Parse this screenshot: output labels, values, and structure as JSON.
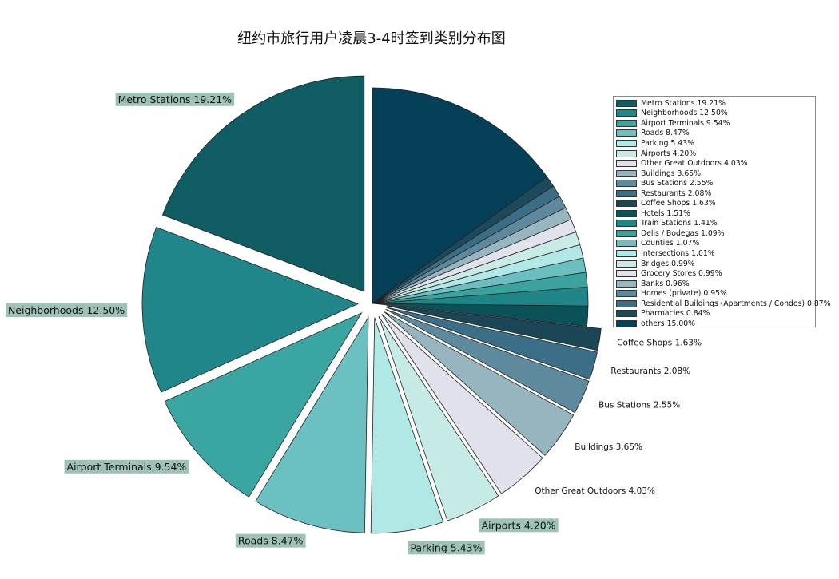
{
  "chart_data": {
    "type": "pie",
    "title": "纽约市旅行用户凌晨3-4时签到类别分布图",
    "slices": [
      {
        "label": "Metro Stations",
        "value": 19.21,
        "pct_label": "19.21%",
        "color": "#0f5c62",
        "explode": true,
        "label_bg": true
      },
      {
        "label": "Neighborhoods",
        "value": 12.5,
        "pct_label": "12.50%",
        "color": "#21868a",
        "explode": true,
        "label_bg": true
      },
      {
        "label": "Airport Terminals",
        "value": 9.54,
        "pct_label": "9.54%",
        "color": "#3ba6a1",
        "explode": true,
        "label_bg": true
      },
      {
        "label": "Roads",
        "value": 8.47,
        "pct_label": "8.47%",
        "color": "#6cc0c1",
        "explode": true,
        "label_bg": true
      },
      {
        "label": "Parking",
        "value": 5.43,
        "pct_label": "5.43%",
        "color": "#b0e8e6",
        "explode": true,
        "label_bg": true
      },
      {
        "label": "Airports",
        "value": 4.2,
        "pct_label": "4.20%",
        "color": "#c6ebe7",
        "explode": true,
        "label_bg": true
      },
      {
        "label": "Other Great Outdoors",
        "value": 4.03,
        "pct_label": "4.03%",
        "color": "#e1e1ec",
        "explode": true,
        "label_bg": false
      },
      {
        "label": "Buildings",
        "value": 3.65,
        "pct_label": "3.65%",
        "color": "#96b5bf",
        "explode": true,
        "label_bg": false
      },
      {
        "label": "Bus Stations",
        "value": 2.55,
        "pct_label": "2.55%",
        "color": "#5e8a9e",
        "explode": true,
        "label_bg": false
      },
      {
        "label": "Restaurants",
        "value": 2.08,
        "pct_label": "2.08%",
        "color": "#3b6f87",
        "explode": true,
        "label_bg": false
      },
      {
        "label": "Coffee Shops",
        "value": 1.63,
        "pct_label": "1.63%",
        "color": "#1b4656",
        "explode": true,
        "label_bg": false
      },
      {
        "label": "Hotels",
        "value": 1.51,
        "pct_label": "1.51%",
        "color": "#0b5158",
        "explode": false,
        "label_bg": false
      },
      {
        "label": "Train Stations",
        "value": 1.41,
        "pct_label": "1.41%",
        "color": "#1f8587",
        "explode": false,
        "label_bg": false
      },
      {
        "label": "Delis / Bodegas",
        "value": 1.09,
        "pct_label": "1.09%",
        "color": "#3aa39e",
        "explode": false,
        "label_bg": false
      },
      {
        "label": "Counties",
        "value": 1.07,
        "pct_label": "1.07%",
        "color": "#6cbfc0",
        "explode": false,
        "label_bg": false
      },
      {
        "label": "Intersections",
        "value": 1.01,
        "pct_label": "1.01%",
        "color": "#b1e8e6",
        "explode": false,
        "label_bg": false
      },
      {
        "label": "Bridges",
        "value": 0.99,
        "pct_label": "0.99%",
        "color": "#c9ebe6",
        "explode": false,
        "label_bg": false
      },
      {
        "label": "Grocery Stores",
        "value": 0.99,
        "pct_label": "0.99%",
        "color": "#e2e2ed",
        "explode": false,
        "label_bg": false
      },
      {
        "label": "Banks",
        "value": 0.96,
        "pct_label": "0.96%",
        "color": "#97b6c0",
        "explode": false,
        "label_bg": false
      },
      {
        "label": "Homes (private)",
        "value": 0.95,
        "pct_label": "0.95%",
        "color": "#5e899d",
        "explode": false,
        "label_bg": false
      },
      {
        "label": "Residential Buildings (Apartments / Condos)",
        "value": 0.87,
        "pct_label": "0.87%",
        "color": "#3b6e86",
        "explode": false,
        "label_bg": false
      },
      {
        "label": "Pharmacies",
        "value": 0.84,
        "pct_label": "0.84%",
        "color": "#1c4a5c",
        "explode": false,
        "label_bg": false
      },
      {
        "label": "others",
        "value": 15.0,
        "pct_label": "15.00%",
        "color": "#053f58",
        "explode": false,
        "label_bg": false
      }
    ],
    "label_bg_color": "#9ec2b8",
    "start_angle_deg": 90,
    "direction": "counterclockwise",
    "legend": "right",
    "visible_slice_labels": 11
  }
}
